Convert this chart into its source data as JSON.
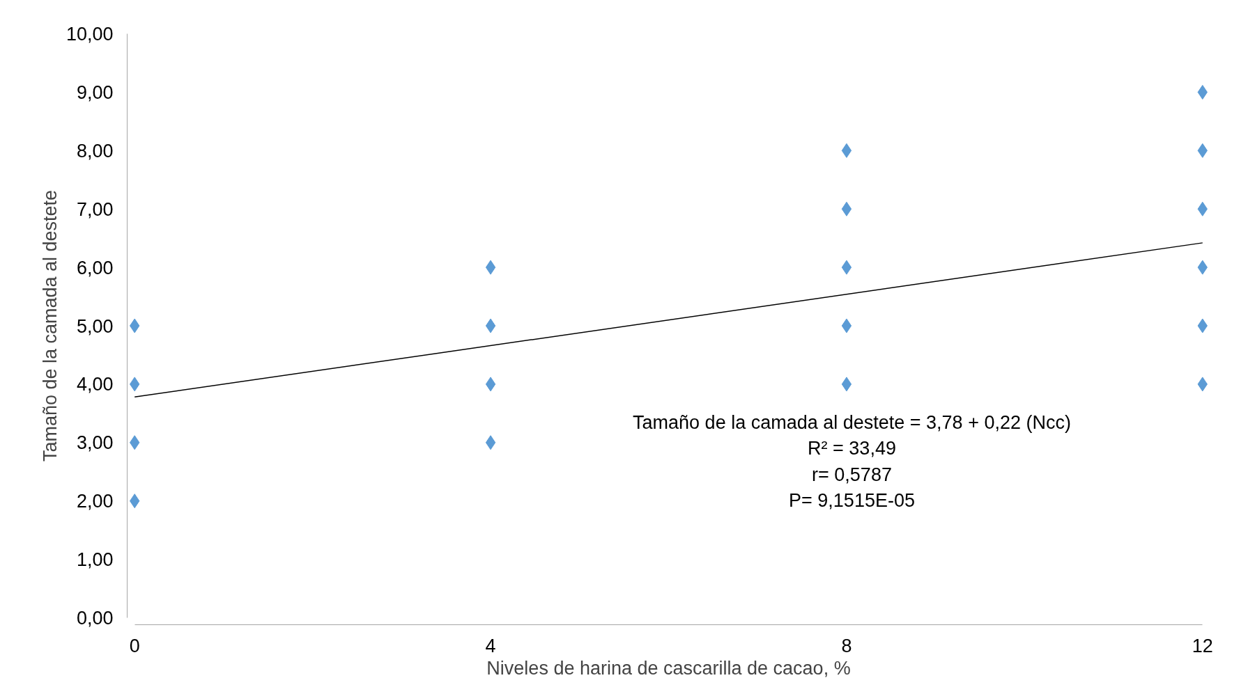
{
  "chart_data": {
    "type": "scatter",
    "xlabel": "Niveles de harina de cascarilla de cacao, %",
    "ylabel": "Tamaño de la camada al destete",
    "xlim": [
      0,
      12
    ],
    "xticks": [
      0,
      4,
      8,
      12
    ],
    "ylim": [
      0,
      10
    ],
    "yticks": [
      {
        "value": 0,
        "label": "0,00"
      },
      {
        "value": 1,
        "label": "1,00"
      },
      {
        "value": 2,
        "label": "2,00"
      },
      {
        "value": 3,
        "label": "3,00"
      },
      {
        "value": 4,
        "label": "4,00"
      },
      {
        "value": 5,
        "label": "5,00"
      },
      {
        "value": 6,
        "label": "6,00"
      },
      {
        "value": 7,
        "label": "7,00"
      },
      {
        "value": 8,
        "label": "8,00"
      },
      {
        "value": 9,
        "label": "9,00"
      },
      {
        "value": 10,
        "label": "10,00"
      }
    ],
    "grid": false,
    "marker": "diamond",
    "series": [
      {
        "color": "#5b9bd5",
        "x": [
          0,
          0,
          0,
          0,
          4,
          4,
          4,
          4,
          8,
          8,
          8,
          8,
          8,
          12,
          12,
          12,
          12,
          12,
          12
        ],
        "values": [
          5,
          4,
          3,
          2,
          6,
          5,
          4,
          3,
          8,
          7,
          6,
          5,
          4,
          9,
          8,
          7,
          6,
          5,
          4
        ]
      },
      {
        "type": "line",
        "color": "#000000",
        "line_style": "solid",
        "marker": "none",
        "x": [
          0,
          12
        ],
        "values": [
          3.78,
          6.42
        ]
      }
    ],
    "annotations": [
      "Tamaño de la camada al destete = 3,78 + 0,22 (Ncc)",
      "R² = 33,49",
      "r= 0,5787",
      "P= 9,1515E-05"
    ]
  }
}
